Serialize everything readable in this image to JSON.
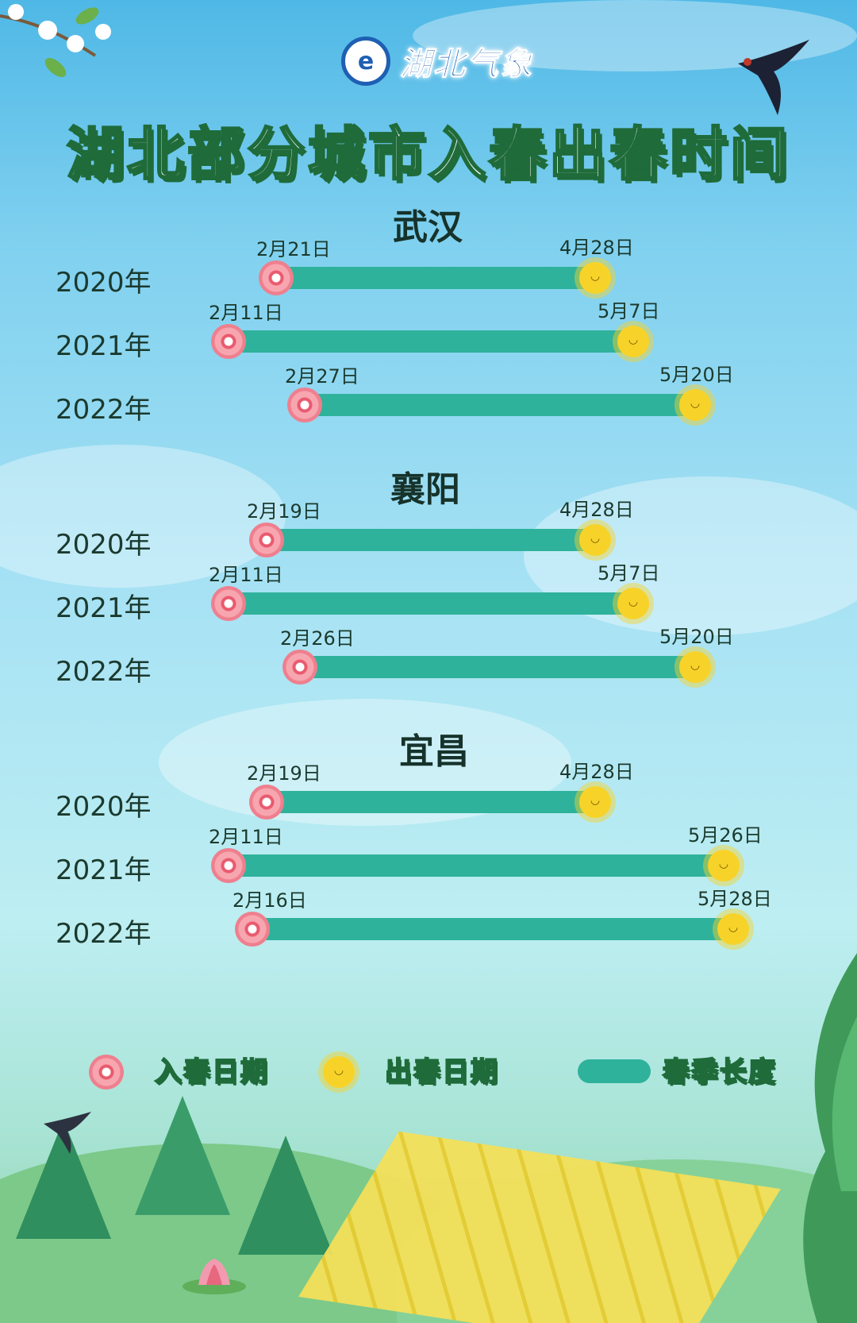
{
  "header": {
    "logo_text": "湖北气象",
    "title": "湖北部分城市入春出春时间"
  },
  "legend": {
    "start_label": "入春日期",
    "end_label": "出春日期",
    "length_label": "春季长度"
  },
  "colors": {
    "bar": "#2fb29b",
    "title_stroke": "#1f6b3a",
    "text": "#1b3a2e",
    "flower": "#ef7f8e",
    "sun": "#f7d32a"
  },
  "chart_data": {
    "type": "bar",
    "orientation": "horizontal-range",
    "cities": [
      {
        "name": "武汉",
        "rows": [
          {
            "year": "2020年",
            "start": "2月21日",
            "end": "4月28日",
            "start_day": 52,
            "end_day": 119
          },
          {
            "year": "2021年",
            "start": "2月11日",
            "end": "5月7日",
            "start_day": 42,
            "end_day": 127
          },
          {
            "year": "2022年",
            "start": "2月27日",
            "end": "5月20日",
            "start_day": 58,
            "end_day": 140
          }
        ]
      },
      {
        "name": "襄阳",
        "rows": [
          {
            "year": "2020年",
            "start": "2月19日",
            "end": "4月28日",
            "start_day": 50,
            "end_day": 119
          },
          {
            "year": "2021年",
            "start": "2月11日",
            "end": "5月7日",
            "start_day": 42,
            "end_day": 127
          },
          {
            "year": "2022年",
            "start": "2月26日",
            "end": "5月20日",
            "start_day": 57,
            "end_day": 140
          }
        ]
      },
      {
        "name": "宜昌",
        "rows": [
          {
            "year": "2020年",
            "start": "2月19日",
            "end": "4月28日",
            "start_day": 50,
            "end_day": 119
          },
          {
            "year": "2021年",
            "start": "2月11日",
            "end": "5月26日",
            "start_day": 42,
            "end_day": 146
          },
          {
            "year": "2022年",
            "start": "2月16日",
            "end": "5月28日",
            "start_day": 47,
            "end_day": 148
          }
        ]
      }
    ]
  }
}
